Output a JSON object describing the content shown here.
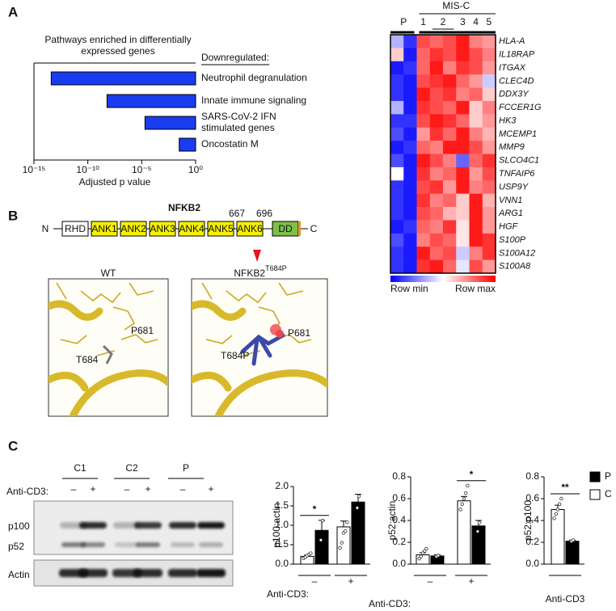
{
  "panel_labels": [
    "A",
    "B",
    "C"
  ],
  "chart_data": [
    {
      "type": "bar",
      "orientation": "horizontal",
      "title": "Pathways enriched in differentially expressed genes",
      "subtitle": "Downregulated:",
      "categories": [
        "Neutrophil degranulation",
        "Innate immune signaling",
        "SARS-CoV-2 IFN stimulated genes",
        "Oncostatin M"
      ],
      "values": [
        4e-14,
        6e-09,
        2e-05,
        0.03
      ],
      "color": "#1a3cf0",
      "xlabel": "Adjusted p value",
      "log_x": true,
      "xlim": [
        1e-15,
        1
      ],
      "xticks": [
        {
          "value": 1e-15,
          "label": "10⁻¹⁵"
        },
        {
          "value": 1e-10,
          "label": "10⁻¹⁰"
        },
        {
          "value": 1e-05,
          "label": "10⁻⁵"
        },
        {
          "value": 1,
          "label": "10⁰"
        }
      ]
    },
    {
      "type": "heatmap",
      "group_label": "MIS-C",
      "columns": [
        "P",
        null,
        "1",
        "2",
        null,
        "3",
        "4",
        "5"
      ],
      "rows": [
        "HLA-A",
        "IL18RAP",
        "ITGAX",
        "CLEC4D",
        "DDX3Y",
        "FCCER1G",
        "HK3",
        "MCEMP1",
        "MMP9",
        "SLCO4C1",
        "TNFAIP6",
        "USP9Y",
        "VNN1",
        "ARG1",
        "HGF",
        "S100P",
        "S100A12",
        "S100A8"
      ],
      "values": [
        [
          0.35,
          0.1,
          0.85,
          0.8,
          0.85,
          0.95,
          0.75,
          0.7
        ],
        [
          0.6,
          0.05,
          0.8,
          0.9,
          0.85,
          0.95,
          0.85,
          0.75
        ],
        [
          0.05,
          0.1,
          0.8,
          0.95,
          0.75,
          0.9,
          0.85,
          0.7
        ],
        [
          0.1,
          0.05,
          0.85,
          0.9,
          0.95,
          0.8,
          0.7,
          0.4
        ],
        [
          0.1,
          0.05,
          0.95,
          0.85,
          0.9,
          0.75,
          0.8,
          0.6
        ],
        [
          0.35,
          0.05,
          0.9,
          0.85,
          0.8,
          0.95,
          0.6,
          0.75
        ],
        [
          0.1,
          0.1,
          0.85,
          0.95,
          0.9,
          0.8,
          0.6,
          0.7
        ],
        [
          0.15,
          0.05,
          0.7,
          0.9,
          0.8,
          0.95,
          0.75,
          0.65
        ],
        [
          0.05,
          0.1,
          0.8,
          0.75,
          0.95,
          0.95,
          0.85,
          0.7
        ],
        [
          0.15,
          0.05,
          0.95,
          0.85,
          0.75,
          0.2,
          0.8,
          0.9
        ],
        [
          0.5,
          0.05,
          0.9,
          0.75,
          0.8,
          0.95,
          0.7,
          0.85
        ],
        [
          0.1,
          0.05,
          0.85,
          0.9,
          0.7,
          0.95,
          0.75,
          0.8
        ],
        [
          0.1,
          0.05,
          0.9,
          0.75,
          0.8,
          0.6,
          0.95,
          0.65
        ],
        [
          0.1,
          0.05,
          0.85,
          0.8,
          0.65,
          0.6,
          0.95,
          0.7
        ],
        [
          0.05,
          0.1,
          0.8,
          0.75,
          0.9,
          0.55,
          0.95,
          0.7
        ],
        [
          0.15,
          0.05,
          0.75,
          0.85,
          0.8,
          0.55,
          0.95,
          0.9
        ],
        [
          0.1,
          0.05,
          0.95,
          0.8,
          0.85,
          0.4,
          0.75,
          0.9
        ],
        [
          0.1,
          0.05,
          0.9,
          0.95,
          0.8,
          0.45,
          0.85,
          0.7
        ]
      ],
      "colors": [
        "#0000ff",
        "#ffffff",
        "#ff0000"
      ],
      "zlim": [
        0,
        1
      ],
      "legend_min": "Row min",
      "legend_max": "Row max"
    },
    {
      "type": "bar",
      "ylabel": "p100:actin",
      "xlabel": "Anti-CD3:",
      "categories": [
        "–",
        "+"
      ],
      "annotations": [
        "*",
        null
      ],
      "ylim": [
        0,
        2
      ],
      "yticks": [
        {
          "value": 0,
          "label": "0.0"
        },
        {
          "value": 0.5,
          "label": "0.5"
        },
        {
          "value": 1,
          "label": "1.0"
        },
        {
          "value": 1.5,
          "label": "1.5"
        },
        {
          "value": 2,
          "label": "2.0"
        }
      ],
      "series": [
        {
          "color": "#ffffff",
          "values": [
            0.2,
            0.96
          ],
          "errors": [
            0.03,
            0.15
          ],
          "points": [
            [
              0.15,
              0.18,
              0.22,
              0.25,
              0.28
            ],
            [
              0.42,
              0.55,
              0.8,
              0.85,
              1.08
            ]
          ]
        },
        {
          "color": "#000000",
          "values": [
            0.87,
            1.6
          ],
          "errors": [
            0.26,
            0.2
          ],
          "points": [
            [
              0.62,
              1.12
            ],
            [
              1.45,
              1.75
            ]
          ]
        }
      ]
    },
    {
      "type": "bar",
      "ylabel": "p52:actin",
      "xlabel": "Anti-CD3:",
      "categories": [
        "–",
        "+"
      ],
      "annotations": [
        null,
        "*"
      ],
      "ylim": [
        0,
        0.8
      ],
      "yticks": [
        {
          "value": 0,
          "label": "0.0"
        },
        {
          "value": 0.2,
          "label": "0.2"
        },
        {
          "value": 0.4,
          "label": "0.4"
        },
        {
          "value": 0.6,
          "label": "0.6"
        },
        {
          "value": 0.8,
          "label": "0.8"
        }
      ],
      "series": [
        {
          "color": "#ffffff",
          "values": [
            0.085,
            0.58
          ],
          "errors": [
            0.02,
            0.04
          ],
          "points": [
            [
              0.05,
              0.07,
              0.1,
              0.12,
              0.14
            ],
            [
              0.5,
              0.55,
              0.6,
              0.65,
              0.72
            ]
          ]
        },
        {
          "color": "#000000",
          "values": [
            0.075,
            0.35
          ],
          "errors": [
            0.01,
            0.05
          ],
          "points": [
            [
              0.07,
              0.08
            ],
            [
              0.3,
              0.38
            ]
          ]
        }
      ]
    },
    {
      "type": "bar",
      "ylabel": "p52:p100",
      "categories": [
        "Anti-CD3"
      ],
      "annotations": [
        "**"
      ],
      "ylim": [
        0,
        0.8
      ],
      "yticks": [
        {
          "value": 0,
          "label": "0.0"
        },
        {
          "value": 0.2,
          "label": "0.2"
        },
        {
          "value": 0.4,
          "label": "0.4"
        },
        {
          "value": 0.6,
          "label": "0.6"
        },
        {
          "value": 0.8,
          "label": "0.8"
        }
      ],
      "series": [
        {
          "name": "C",
          "color": "#ffffff",
          "values": [
            0.5
          ],
          "errors": [
            0.04
          ],
          "points": [
            [
              0.42,
              0.46,
              0.5,
              0.55,
              0.6
            ]
          ]
        },
        {
          "name": "P",
          "color": "#000000",
          "values": [
            0.21
          ],
          "errors": [
            0.01
          ],
          "points": [
            [
              0.21,
              0.22
            ]
          ]
        }
      ]
    }
  ],
  "domain_diagram": {
    "title": "NFKB2",
    "n_label": "N",
    "c_label": "C",
    "domains": [
      "RHD",
      "ANK1",
      "ANK2",
      "ANK3",
      "ANK4",
      "ANK5",
      "ANK6",
      "DD"
    ],
    "positions": [
      667,
      696
    ]
  },
  "structures": [
    {
      "title": "WT",
      "labels": [
        "P681",
        "T684"
      ]
    },
    {
      "title": "NFKB2",
      "title_sup": "T684P",
      "labels": [
        "P681",
        "T684P"
      ]
    }
  ],
  "blot": {
    "lanes": [
      "C1",
      "C2",
      "P"
    ],
    "treatment_label": "Anti-CD3:",
    "treatments": [
      "–",
      "+",
      "–",
      "+",
      "–",
      "+"
    ],
    "bands": [
      "p100",
      "p52"
    ],
    "loading": "Actin"
  }
}
